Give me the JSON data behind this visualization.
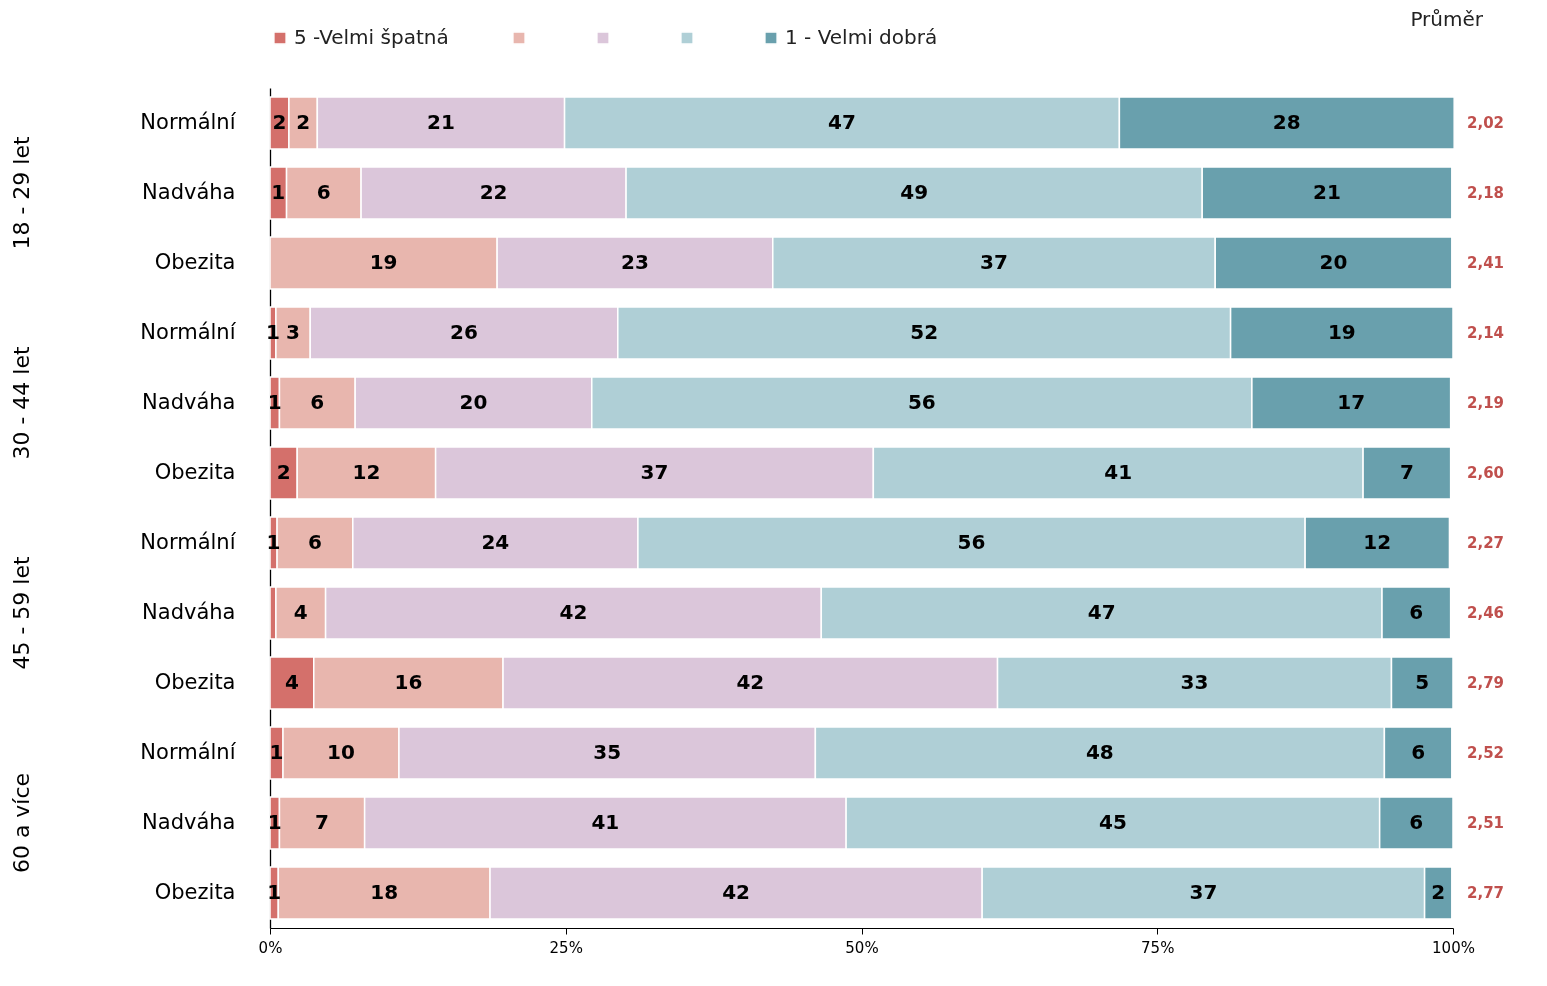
{
  "chart_data": {
    "type": "bar",
    "orientation": "horizontal",
    "stacked": true,
    "legend": "top",
    "categories": [
      "Normální",
      "Nadváha",
      "Obezita",
      "Normální",
      "Nadváha",
      "Obezita",
      "Normální",
      "Nadváha",
      "Obezita",
      "Normální",
      "Nadváha",
      "Obezita"
    ],
    "series": [
      {
        "name": "5 -Velmi špatná",
        "color": "#d4706b",
        "values": [
          1.6,
          1.4,
          null,
          0.5,
          0.8,
          2.3,
          0.6,
          0.5,
          3.7,
          1.1,
          0.8,
          0.7
        ],
        "value_labels": [
          "2",
          "1",
          null,
          "1",
          "1",
          "2",
          "1",
          null,
          "4",
          "1",
          "1",
          "1"
        ]
      },
      {
        "color": "#e8b6ae",
        "values": [
          2.4,
          6.3,
          19.2,
          2.9,
          6.4,
          11.7,
          6.4,
          4.2,
          16.0,
          9.8,
          7.2,
          17.9
        ],
        "value_labels": [
          "2",
          "6",
          "19",
          "3",
          "6",
          "12",
          "6",
          "4",
          "16",
          "10",
          "7",
          "18"
        ]
      },
      {
        "color": "#dbc6da",
        "values": [
          20.9,
          22.4,
          23.3,
          26.0,
          20.0,
          37.0,
          24.1,
          41.9,
          41.8,
          35.2,
          40.7,
          41.6
        ],
        "value_labels": [
          "21",
          "22",
          "23",
          "26",
          "20",
          "37",
          "24",
          "42",
          "42",
          "35",
          "41",
          "42"
        ]
      },
      {
        "color": "#afcfd6",
        "values": [
          46.9,
          48.7,
          37.4,
          51.8,
          55.8,
          41.4,
          56.4,
          47.4,
          33.3,
          48.1,
          45.1,
          37.4
        ],
        "value_labels": [
          "47",
          "49",
          "37",
          "52",
          "56",
          "41",
          "56",
          "47",
          "33",
          "48",
          "45",
          "37"
        ]
      },
      {
        "name": "1 - Velmi dobrá",
        "color": "#69a0ad",
        "values": [
          28.3,
          21.1,
          20.0,
          18.8,
          16.8,
          7.4,
          12.2,
          5.8,
          5.2,
          5.7,
          6.2,
          2.3
        ],
        "value_labels": [
          "28",
          "21",
          "20",
          "19",
          "17",
          "7",
          "12",
          "6",
          "5",
          "6",
          "6",
          "2"
        ]
      }
    ],
    "xlim": [
      0,
      100
    ],
    "xticks": [
      {
        "value": 0,
        "label": "0%"
      },
      {
        "value": 25,
        "label": "25%"
      },
      {
        "value": 50,
        "label": "50%"
      },
      {
        "value": 75,
        "label": "75%"
      },
      {
        "value": 100,
        "label": "100%"
      }
    ],
    "annotations": [
      "18 - 29 let",
      "30 - 44 let",
      "45 - 59 let",
      "60 a více",
      "Průměr",
      "2,02",
      "2,18",
      "2,41",
      "2,14",
      "2,19",
      "2,60",
      "2,27",
      "2,46",
      "2,79",
      "2,52",
      "2,51",
      "2,77"
    ]
  }
}
